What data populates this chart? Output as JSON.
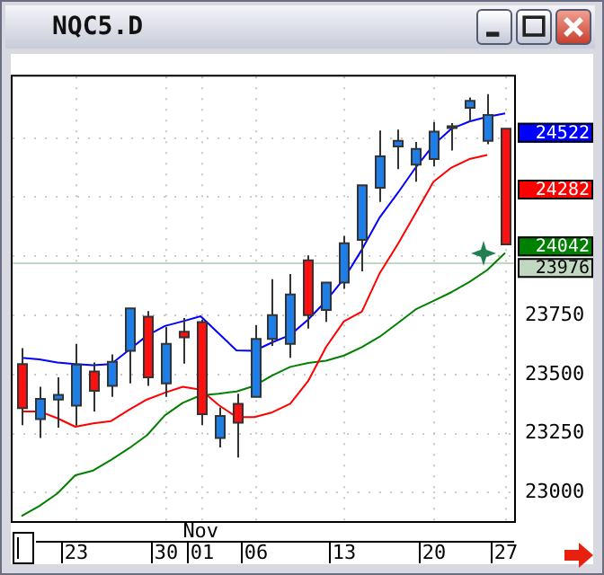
{
  "chart_data": {
    "type": "candlestick",
    "title": "NQC5.D",
    "categories": [
      null,
      null,
      null,
      "23",
      null,
      null,
      null,
      null,
      "30",
      null,
      "01",
      null,
      null,
      "06",
      null,
      null,
      null,
      null,
      "13",
      null,
      null,
      null,
      null,
      "20",
      null,
      null,
      null,
      "27"
    ],
    "ohlc": [
      [
        23544,
        23611,
        23286,
        23358
      ],
      [
        23311,
        23448,
        23231,
        23397
      ],
      [
        23394,
        23488,
        23275,
        23414
      ],
      [
        23368,
        23629,
        23284,
        23542
      ],
      [
        23513,
        23551,
        23344,
        23431
      ],
      [
        23452,
        23585,
        23405,
        23553
      ],
      [
        23600,
        23780,
        23462,
        23780
      ],
      [
        23744,
        23768,
        23452,
        23488
      ],
      [
        23462,
        23701,
        23405,
        23629
      ],
      [
        23681,
        23739,
        23546,
        23657
      ],
      [
        23722,
        23732,
        23286,
        23332
      ],
      [
        23231,
        23361,
        23192,
        23325
      ],
      [
        23376,
        23419,
        23149,
        23296
      ],
      [
        23405,
        23708,
        23405,
        23650
      ],
      [
        23650,
        23903,
        23621,
        23751
      ],
      [
        23629,
        23925,
        23571,
        23838
      ],
      [
        23983,
        24004,
        23694,
        23751
      ],
      [
        23773,
        23889,
        23723,
        23889
      ],
      [
        23889,
        24086,
        23862,
        24055
      ],
      [
        24069,
        24300,
        23936,
        24300
      ],
      [
        24290,
        24532,
        24230,
        24423
      ],
      [
        24464,
        24536,
        24368,
        24488
      ],
      [
        24387,
        24483,
        24315,
        24454
      ],
      [
        24411,
        24568,
        24380,
        24527
      ],
      [
        24543,
        24563,
        24447,
        24550
      ],
      [
        24628,
        24671,
        24568,
        24657
      ],
      [
        24488,
        24686,
        24474,
        24597
      ],
      [
        24539,
        24539,
        24050,
        24050
      ]
    ],
    "colors": [
      "#ff1010",
      "#1e7ee8",
      "#1e7ee8",
      "#1e7ee8",
      "#ff1010",
      "#1e7ee8",
      "#1e7ee8",
      "#ff1010",
      "#1e7ee8",
      "#ff1010",
      "#ff1010",
      "#1e7ee8",
      "#ff1010",
      "#1e7ee8",
      "#1e7ee8",
      "#1e7ee8",
      "#ff1010",
      "#1e7ee8",
      "#1e7ee8",
      "#1e7ee8",
      "#1e7ee8",
      "#1e7ee8",
      "#1e7ee8",
      "#1e7ee8",
      "#1e7ee8",
      "#1e7ee8",
      "#1e7ee8",
      "#ff1010"
    ],
    "series": [
      {
        "type": "line",
        "color": "#0000ff",
        "values": [
          23571,
          23564,
          23551,
          23544,
          23539,
          23544,
          23604,
          23664,
          23705,
          23725,
          23746,
          23674,
          23602,
          23600,
          23636,
          23667,
          23732,
          23811,
          23905,
          24028,
          24165,
          24267,
          24375,
          24471,
          24539,
          24570,
          24590,
          24604
        ]
      },
      {
        "type": "line",
        "color": "#ff0000",
        "values": [
          23344,
          23344,
          23315,
          23279,
          23293,
          23303,
          23351,
          23394,
          23423,
          23448,
          23436,
          23371,
          23320,
          23320,
          23340,
          23376,
          23472,
          23616,
          23725,
          23766,
          23929,
          24050,
          24182,
          24315,
          24375,
          24411,
          24428,
          null
        ]
      },
      {
        "type": "line",
        "color": "#008000",
        "values": [
          22901,
          22944,
          22997,
          23074,
          23094,
          23139,
          23188,
          23243,
          23327,
          23380,
          23412,
          23419,
          23428,
          23452,
          23496,
          23532,
          23549,
          23558,
          23580,
          23616,
          23660,
          23717,
          23775,
          23811,
          23848,
          23891,
          23942,
          24014
        ]
      }
    ],
    "ylim": [
      22880,
      24760
    ],
    "yticks": [
      23000,
      23250,
      23500,
      23750,
      {
        "value": 24000,
        "label": null
      },
      {
        "value": 24250,
        "label": null
      },
      {
        "value": 24500,
        "label": null
      }
    ],
    "grid": true,
    "marker": "none",
    "ref_lines": [
      {
        "axis": "y",
        "value": 23976,
        "label": "23976",
        "color": "#c0d8c0"
      }
    ],
    "annotations": [
      "24522",
      "24282",
      "24042",
      "Nov"
    ]
  }
}
